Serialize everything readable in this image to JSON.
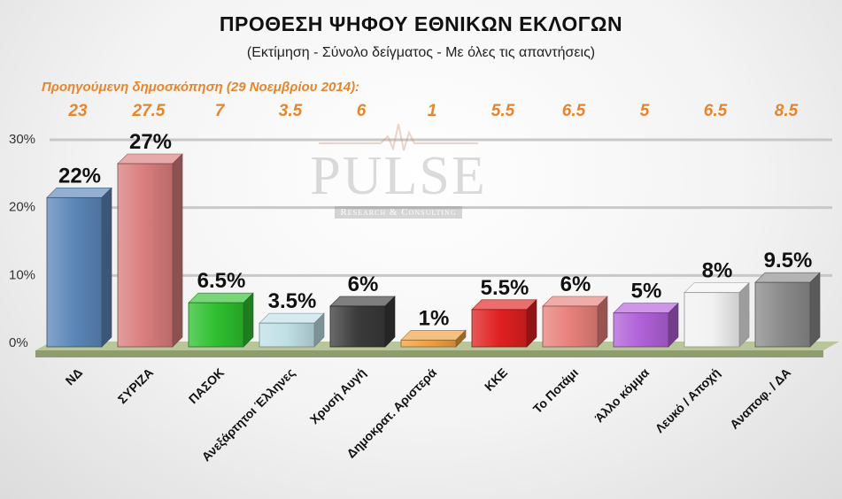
{
  "title": "ΠΡΟΘΕΣΗ ΨΗΦΟΥ ΕΘΝΙΚΩΝ ΕΚΛΟΓΩΝ",
  "subtitle": "(Εκτίμηση - Σύνολο δείγματος - Με όλες τις απαντήσεις)",
  "previous_caption": "Προηγούμενη δημοσκόπηση  (29 Νοεμβρίου 2014):",
  "watermark": {
    "main": "PULSE",
    "sub": "Research & Consulting"
  },
  "colors": {
    "previous_text": "#e8852a",
    "grid": "#c8c8c8",
    "floor": "#8e9c6e"
  },
  "chart_data": {
    "type": "bar",
    "categories": [
      "ΝΔ",
      "ΣΥΡΙΖΑ",
      "ΠΑΣΟΚ",
      "Ανεξάρτητοι Έλληνες",
      "Χρυσή Αυγή",
      "Δημοκρατ. Αριστερά",
      "ΚΚΕ",
      "Το Ποτάμι",
      "Άλλο κόμμα",
      "Λευκό / Αποχή",
      "Αναποφ. / ΔΑ"
    ],
    "values": [
      22,
      27,
      6.5,
      3.5,
      6,
      1,
      5.5,
      6,
      5,
      8,
      9.5
    ],
    "value_labels": [
      "22%",
      "27%",
      "6.5%",
      "3.5%",
      "6%",
      "1%",
      "5.5%",
      "6%",
      "5%",
      "8%",
      "9.5%"
    ],
    "previous_values": [
      23,
      27.5,
      7,
      3.5,
      6,
      1,
      5.5,
      6.5,
      5,
      6.5,
      8.5
    ],
    "previous_labels": [
      "23",
      "27.5",
      "7",
      "3.5",
      "6",
      "1",
      "5.5",
      "6.5",
      "5",
      "6.5",
      "8.5"
    ],
    "bar_colors": [
      "#5b86b8",
      "#d97c7c",
      "#2fbf2f",
      "#bfe0e6",
      "#3a3a3a",
      "#f0a040",
      "#e02020",
      "#e8807a",
      "#b060d8",
      "#f2f2f2",
      "#8a8a8a"
    ],
    "y_ticks": [
      0,
      10,
      20,
      30
    ],
    "y_tick_labels": [
      "0%",
      "10%",
      "20%",
      "30%"
    ],
    "ylim": [
      0,
      30
    ],
    "grid": true
  }
}
